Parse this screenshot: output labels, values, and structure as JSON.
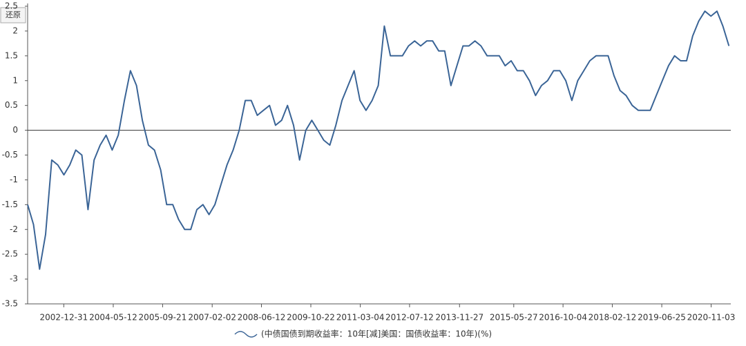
{
  "chart_data": {
    "type": "line",
    "x": [
      "2002-01-01",
      "2002-03-01",
      "2002-05-01",
      "2002-07-01",
      "2002-09-01",
      "2002-11-01",
      "2003-01-01",
      "2003-03-01",
      "2003-05-01",
      "2003-07-01",
      "2003-09-01",
      "2003-11-01",
      "2004-01-01",
      "2004-03-01",
      "2004-05-01",
      "2004-07-01",
      "2004-09-01",
      "2004-11-01",
      "2005-01-01",
      "2005-03-01",
      "2005-05-01",
      "2005-07-01",
      "2005-09-01",
      "2005-11-01",
      "2006-01-01",
      "2006-03-01",
      "2006-05-01",
      "2006-07-01",
      "2006-09-01",
      "2006-11-01",
      "2007-01-01",
      "2007-03-01",
      "2007-05-01",
      "2007-07-01",
      "2007-09-01",
      "2007-11-01",
      "2008-01-01",
      "2008-03-01",
      "2008-05-01",
      "2008-07-01",
      "2008-09-01",
      "2008-11-01",
      "2009-01-01",
      "2009-03-01",
      "2009-05-01",
      "2009-07-01",
      "2009-09-01",
      "2009-11-01",
      "2010-01-01",
      "2010-03-01",
      "2010-05-01",
      "2010-07-01",
      "2010-09-01",
      "2010-11-01",
      "2011-01-01",
      "2011-03-01",
      "2011-05-01",
      "2011-07-01",
      "2011-09-01",
      "2011-11-01",
      "2012-01-01",
      "2012-03-01",
      "2012-05-01",
      "2012-07-01",
      "2012-09-01",
      "2012-11-01",
      "2013-01-01",
      "2013-03-01",
      "2013-05-01",
      "2013-07-01",
      "2013-09-01",
      "2013-11-01",
      "2014-01-01",
      "2014-03-01",
      "2014-05-01",
      "2014-07-01",
      "2014-09-01",
      "2014-11-01",
      "2015-01-01",
      "2015-03-01",
      "2015-05-01",
      "2015-07-01",
      "2015-09-01",
      "2015-11-01",
      "2016-01-01",
      "2016-03-01",
      "2016-05-01",
      "2016-07-01",
      "2016-09-01",
      "2016-11-01",
      "2017-01-01",
      "2017-03-01",
      "2017-05-01",
      "2017-07-01",
      "2017-09-01",
      "2017-11-01",
      "2018-01-01",
      "2018-03-01",
      "2018-05-01",
      "2018-07-01",
      "2018-09-01",
      "2018-11-01",
      "2019-01-01",
      "2019-03-01",
      "2019-05-01",
      "2019-07-01",
      "2019-09-01",
      "2019-11-01",
      "2020-01-01",
      "2020-03-01",
      "2020-05-01",
      "2020-07-01",
      "2020-09-01",
      "2020-11-01",
      "2021-01-01",
      "2021-03-01",
      "2021-05-01"
    ],
    "series": [
      {
        "name": "(中债国债到期收益率：10年[减]美国：国债收益率：10年)(%)",
        "color": "#3a6496",
        "values": [
          -1.5,
          -1.9,
          -2.8,
          -2.1,
          -0.6,
          -0.7,
          -0.9,
          -0.7,
          -0.4,
          -0.5,
          -1.6,
          -0.6,
          -0.3,
          -0.1,
          -0.4,
          -0.1,
          0.6,
          1.2,
          0.9,
          0.2,
          -0.3,
          -0.4,
          -0.8,
          -1.5,
          -1.5,
          -1.8,
          -2.0,
          -2.0,
          -1.6,
          -1.5,
          -1.7,
          -1.5,
          -1.1,
          -0.7,
          -0.4,
          0.0,
          0.6,
          0.6,
          0.3,
          0.4,
          0.5,
          0.1,
          0.2,
          0.5,
          0.1,
          -0.6,
          0.0,
          0.2,
          0.0,
          -0.2,
          -0.3,
          0.1,
          0.6,
          0.9,
          1.2,
          0.6,
          0.4,
          0.6,
          0.9,
          2.1,
          1.5,
          1.5,
          1.5,
          1.7,
          1.8,
          1.7,
          1.8,
          1.8,
          1.6,
          1.6,
          0.9,
          1.3,
          1.7,
          1.7,
          1.8,
          1.7,
          1.5,
          1.5,
          1.5,
          1.3,
          1.4,
          1.2,
          1.2,
          1.0,
          0.7,
          0.9,
          1.0,
          1.2,
          1.2,
          1.0,
          0.6,
          1.0,
          1.2,
          1.4,
          1.5,
          1.5,
          1.5,
          1.1,
          0.8,
          0.7,
          0.5,
          0.4,
          0.4,
          0.4,
          0.7,
          1.0,
          1.3,
          1.5,
          1.4,
          1.4,
          1.9,
          2.2,
          2.4,
          2.3,
          2.4,
          2.1,
          1.7
        ]
      }
    ],
    "xlim": [
      "2002-01-01",
      "2021-05-20"
    ],
    "xticks": [
      "2002-12-31",
      "2004-05-12",
      "2005-09-21",
      "2007-02-02",
      "2008-06-12",
      "2009-10-22",
      "2011-03-04",
      "2012-07-12",
      "2013-11-27",
      "2015-05-27",
      "2016-10-04",
      "2018-02-12",
      "2019-06-25",
      "2020-11-03"
    ],
    "ylim": [
      -3.5,
      2.5
    ],
    "yticks": [
      -3.5,
      -3,
      -2.5,
      -2,
      -1.5,
      -1,
      -0.5,
      0,
      0.5,
      1,
      1.5,
      2,
      2.5
    ],
    "zero_line": true
  },
  "reset_button": "还原"
}
